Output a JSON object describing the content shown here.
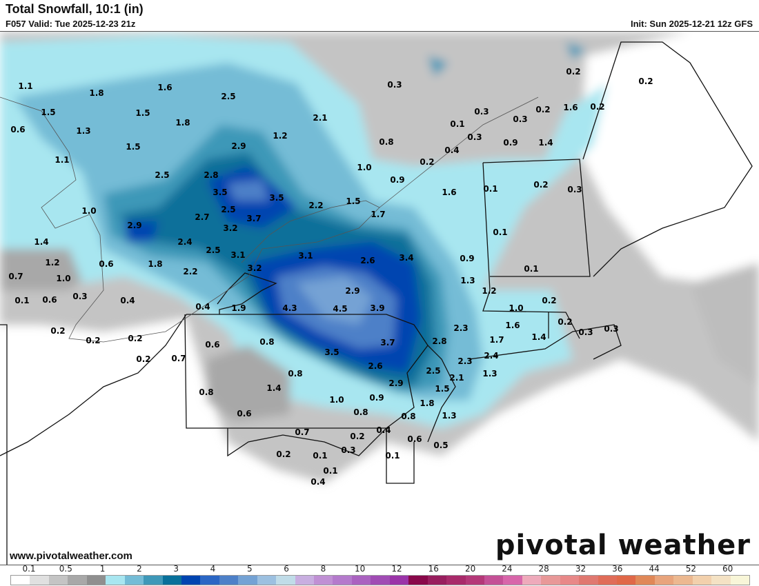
{
  "header": {
    "title": "Total Snowfall, 10:1 (in)",
    "valid": "F057 Valid: Tue 2025-12-23 21z",
    "init": "Init: Sun 2025-12-21 12z GFS"
  },
  "footer": {
    "website": "www.pivotalweather.com",
    "logo": "pivotal weather"
  },
  "colorbar": {
    "labels": [
      "0.1",
      "0.5",
      "1",
      "2",
      "3",
      "4",
      "5",
      "6",
      "8",
      "10",
      "12",
      "16",
      "20",
      "24",
      "28",
      "32",
      "36",
      "44",
      "52",
      "60"
    ],
    "colors": [
      "#ffffff",
      "#e0e0e0",
      "#c4c4c4",
      "#a8a8a8",
      "#8f8f8f",
      "#a8e6f0",
      "#74bcd6",
      "#3e98b8",
      "#08709a",
      "#0044b0",
      "#2b66c4",
      "#4d80c8",
      "#74a2d4",
      "#9cc0e0",
      "#c0dce8",
      "#c8aee0",
      "#c090d4",
      "#b47acc",
      "#aa62c0",
      "#a04cb4",
      "#9a34a8",
      "#88084a",
      "#981e5e",
      "#a82a6a",
      "#b43878",
      "#c45096",
      "#d866aa",
      "#eeaabb",
      "#e89898",
      "#e88888",
      "#e07870",
      "#e06c58",
      "#e06848",
      "#e08858",
      "#e8a47c",
      "#ecb890",
      "#f2d0ac",
      "#f4e2c4",
      "#f8f6d8"
    ]
  },
  "map_labels": [
    "1.1",
    "1.8",
    "1.6",
    "2.5",
    "0.3",
    "0.2",
    "0.2",
    "1.5",
    "1.5",
    "2.1",
    "0.3",
    "0.2",
    "1.6",
    "0.2",
    "0.3",
    "0.1",
    "0.6",
    "1.3",
    "1.8",
    "1.2",
    "0.8",
    "0.3",
    "0.9",
    "1.4",
    "0.4",
    "1.5",
    "2.9",
    "1.1",
    "0.2",
    "2.5",
    "2.8",
    "1.0",
    "0.9",
    "1.6",
    "0.1",
    "0.2",
    "0.3",
    "3.5",
    "3.5",
    "2.2",
    "1.5",
    "1.0",
    "2.9",
    "2.7",
    "2.5",
    "3.7",
    "1.7",
    "3.2",
    "1.4",
    "2.4",
    "0.1",
    "2.5",
    "3.1",
    "3.1",
    "2.6",
    "3.4",
    "0.9",
    "1.2",
    "0.6",
    "1.8",
    "3.2",
    "2.2",
    "0.1",
    "0.7",
    "1.0",
    "1.3",
    "1.2",
    "2.9",
    "0.3",
    "0.1",
    "0.6",
    "0.4",
    "0.2",
    "1.0",
    "0.4",
    "1.9",
    "4.3",
    "4.5",
    "3.9",
    "1.6",
    "0.2",
    "0.3",
    "0.3",
    "0.2",
    "2.3",
    "0.2",
    "0.2",
    "0.6",
    "0.8",
    "3.7",
    "2.8",
    "1.7",
    "1.4",
    "0.2",
    "0.7",
    "3.5",
    "2.6",
    "2.3",
    "2.4",
    "0.8",
    "2.5",
    "2.1",
    "1.3",
    "1.4",
    "2.9",
    "0.8",
    "1.0",
    "0.9",
    "1.5",
    "1.8",
    "0.6",
    "0.8",
    "0.8",
    "1.3",
    "0.7",
    "0.4",
    "0.2",
    "0.6",
    "0.5",
    "0.3",
    "0.2",
    "0.1",
    "0.1",
    "0.1",
    "0.4"
  ]
}
